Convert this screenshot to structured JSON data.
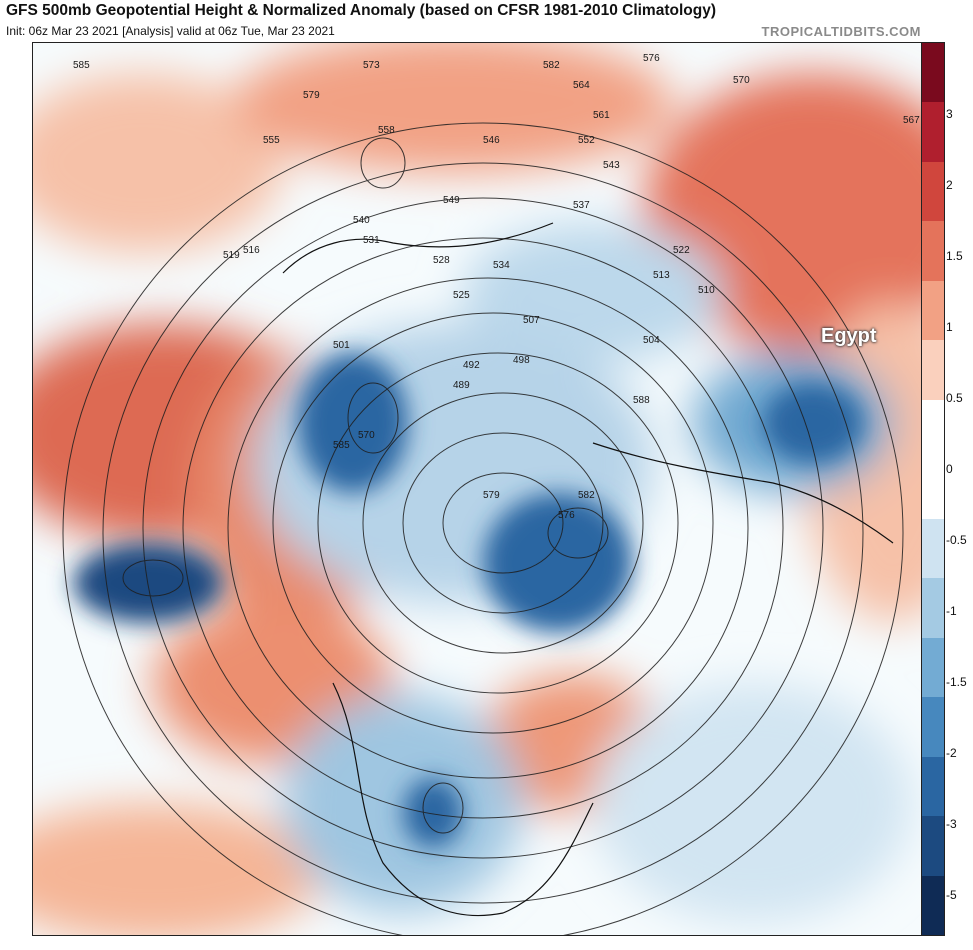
{
  "header": {
    "title": "GFS 500mb Geopotential Height & Normalized Anomaly (based on CFSR 1981-2010 Climatology)",
    "subtitle": "Init: 06z Mar 23 2021   [Analysis]   valid at 06z Tue, Mar 23 2021",
    "credit": "TROPICALTIDBITS.COM"
  },
  "map": {
    "annotation": "Egypt",
    "contour_labels": [
      "585",
      "579",
      "582",
      "576",
      "570",
      "567",
      "573",
      "564",
      "561",
      "558",
      "555",
      "552",
      "549",
      "546",
      "543",
      "540",
      "537",
      "534",
      "531",
      "528",
      "525",
      "522",
      "519",
      "516",
      "513",
      "510",
      "507",
      "504",
      "501",
      "498",
      "492",
      "489",
      "588"
    ]
  },
  "colorbar": {
    "labels": [
      "3",
      "2",
      "1.5",
      "1",
      "0.5",
      "0",
      "-0.5",
      "-1",
      "-1.5",
      "-2",
      "-3",
      "-5"
    ],
    "colors": [
      "#7a0a1e",
      "#b01f2e",
      "#d0463d",
      "#e4735b",
      "#f2a184",
      "#fad0bd",
      "#ffffff",
      "#ffffff",
      "#cfe3f1",
      "#a4cae3",
      "#73abd3",
      "#4788be",
      "#2a66a2",
      "#1c4a80",
      "#0f2b55"
    ]
  },
  "icons": {
    "colorbar": "anomaly-scale",
    "map": "polar-stereographic-map"
  }
}
